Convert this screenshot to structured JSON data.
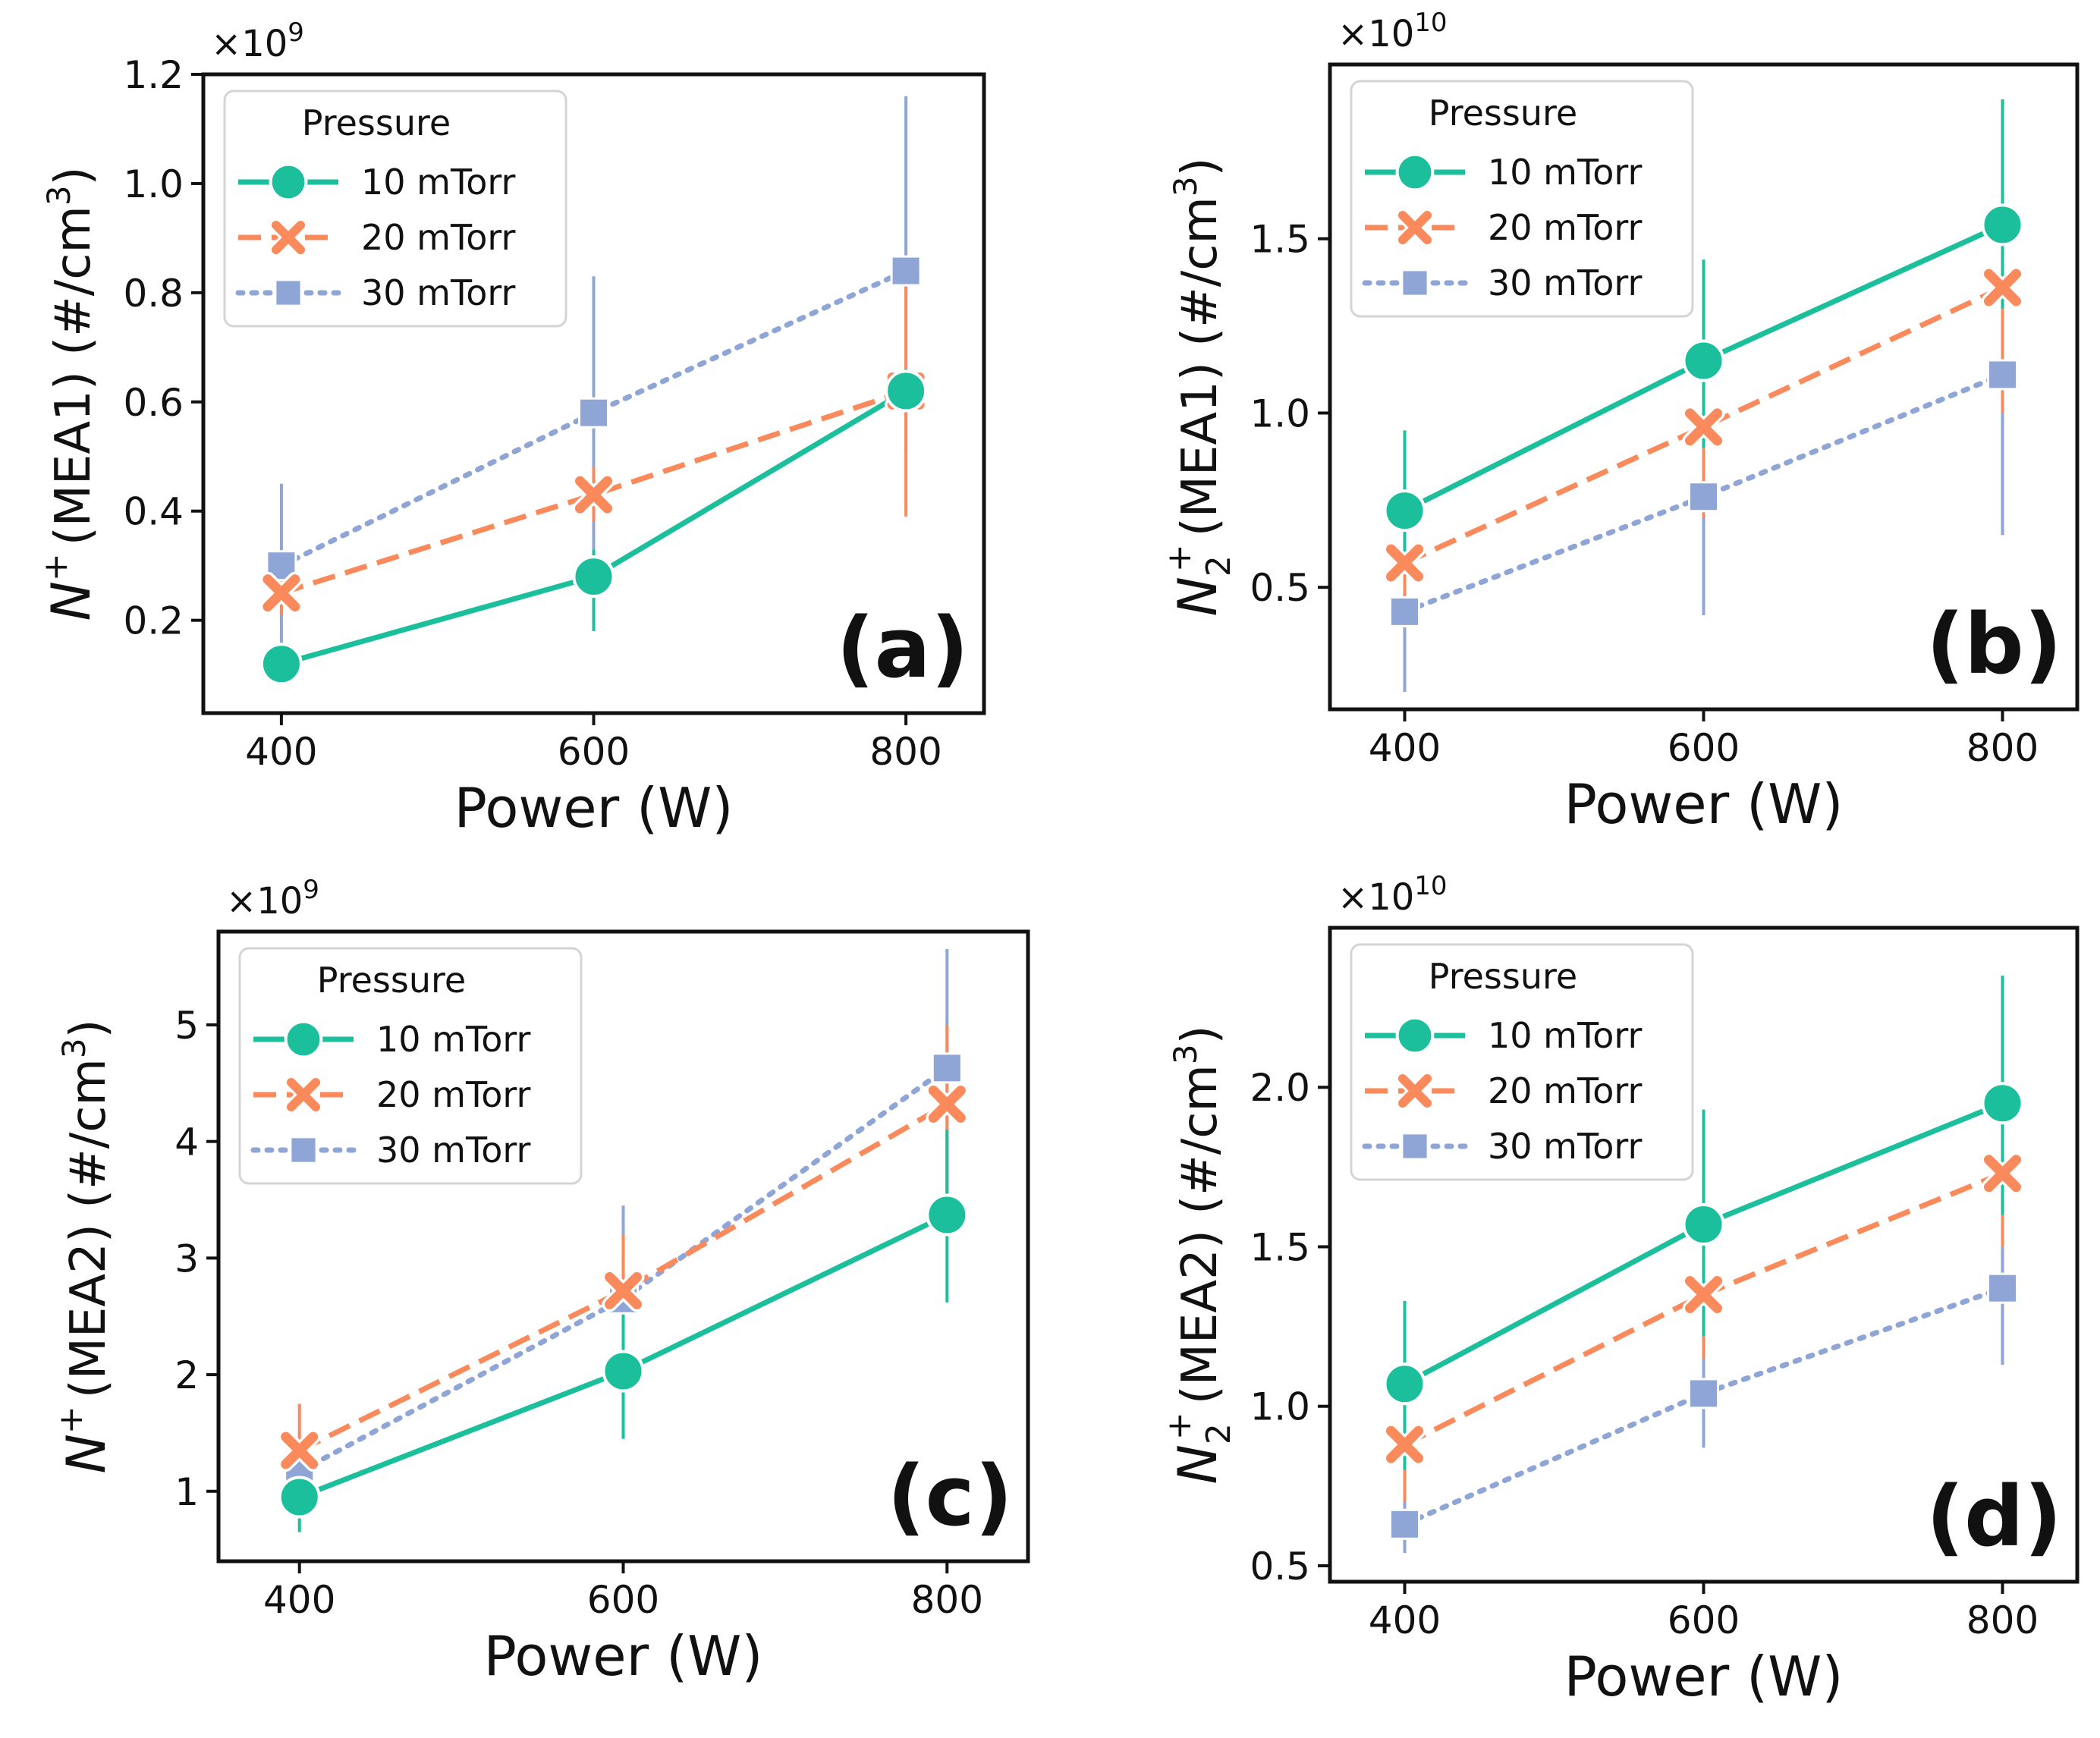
{
  "chart_data": [
    {
      "type": "line",
      "panel_label": "(a)",
      "xlabel": "Power (W)",
      "ylabel_main": "N",
      "ylabel_sup": "+",
      "ylabel_sub": "",
      "ylabel_rest": "(MEA1) (#/cm",
      "ylabel_unit_sup": "3",
      "ylabel_close": ")",
      "ylabel_full": "N+(MEA1) (#/cm3)",
      "multiplier_base": "×10",
      "multiplier_exp": "9",
      "x": [
        400,
        600,
        800
      ],
      "xlim": [
        350,
        850
      ],
      "ylim": [
        0.03,
        1.2
      ],
      "yticks": [
        0.2,
        0.4,
        0.6,
        0.8,
        1.0,
        1.2
      ],
      "ytick_labels": [
        "0.2",
        "0.4",
        "0.6",
        "0.8",
        "1.0",
        "1.2"
      ],
      "xticks": [
        400,
        600,
        800
      ],
      "xtick_labels": [
        "400",
        "600",
        "800"
      ],
      "legend_title": "Pressure",
      "legend_position": "top-left",
      "series": [
        {
          "name": "10 mTorr",
          "values": [
            0.12,
            0.28,
            0.62
          ],
          "err_low": [
            0.12,
            0.18,
            0.62
          ],
          "err_high": [
            0.12,
            0.33,
            0.66
          ]
        },
        {
          "name": "20 mTorr",
          "values": [
            0.25,
            0.43,
            0.62
          ],
          "err_low": [
            0.21,
            0.38,
            0.39
          ],
          "err_high": [
            0.3,
            0.48,
            0.85
          ]
        },
        {
          "name": "30 mTorr",
          "values": [
            0.3,
            0.58,
            0.84
          ],
          "err_low": [
            0.14,
            0.33,
            0.51
          ],
          "err_high": [
            0.45,
            0.83,
            1.16
          ]
        }
      ]
    },
    {
      "type": "line",
      "panel_label": "(b)",
      "xlabel": "Power (W)",
      "ylabel_main": "N",
      "ylabel_sup": "+",
      "ylabel_sub": "2",
      "ylabel_rest": "(MEA1) (#/cm",
      "ylabel_unit_sup": "3",
      "ylabel_close": ")",
      "ylabel_full": "N2+(MEA1) (#/cm3)",
      "multiplier_base": "×10",
      "multiplier_exp": "10",
      "x": [
        400,
        600,
        800
      ],
      "xlim": [
        350,
        850
      ],
      "ylim": [
        0.15,
        2.0
      ],
      "yticks": [
        0.5,
        1.0,
        1.5
      ],
      "ytick_labels": [
        "0.5",
        "1.0",
        "1.5"
      ],
      "xticks": [
        400,
        600,
        800
      ],
      "xtick_labels": [
        "400",
        "600",
        "800"
      ],
      "legend_title": "Pressure",
      "legend_position": "top-left",
      "series": [
        {
          "name": "10 mTorr",
          "values": [
            0.72,
            1.15,
            1.54
          ],
          "err_low": [
            0.55,
            0.9,
            1.3
          ],
          "err_high": [
            0.95,
            1.44,
            1.9
          ]
        },
        {
          "name": "20 mTorr",
          "values": [
            0.57,
            0.96,
            1.36
          ],
          "err_low": [
            0.45,
            0.7,
            1.0
          ],
          "err_high": [
            0.8,
            1.33,
            1.82
          ]
        },
        {
          "name": "30 mTorr",
          "values": [
            0.43,
            0.76,
            1.11
          ],
          "err_low": [
            0.2,
            0.42,
            0.65
          ],
          "err_high": [
            0.66,
            1.1,
            1.56
          ]
        }
      ]
    },
    {
      "type": "line",
      "panel_label": "(c)",
      "xlabel": "Power (W)",
      "ylabel_main": "N",
      "ylabel_sup": "+",
      "ylabel_sub": "",
      "ylabel_rest": "(MEA2) (#/cm",
      "ylabel_unit_sup": "3",
      "ylabel_close": ")",
      "ylabel_full": "N+(MEA2) (#/cm3)",
      "multiplier_base": "×10",
      "multiplier_exp": "9",
      "x": [
        400,
        600,
        800
      ],
      "xlim": [
        350,
        850
      ],
      "ylim": [
        0.4,
        5.8
      ],
      "yticks": [
        1,
        2,
        3,
        4,
        5
      ],
      "ytick_labels": [
        "1",
        "2",
        "3",
        "4",
        "5"
      ],
      "xticks": [
        400,
        600,
        800
      ],
      "xtick_labels": [
        "400",
        "600",
        "800"
      ],
      "legend_title": "Pressure",
      "legend_position": "top-left",
      "series": [
        {
          "name": "10 mTorr",
          "values": [
            0.95,
            2.03,
            3.37
          ],
          "err_low": [
            0.65,
            1.45,
            2.62
          ],
          "err_high": [
            1.25,
            2.6,
            4.1
          ]
        },
        {
          "name": "20 mTorr",
          "values": [
            1.35,
            2.72,
            4.32
          ],
          "err_low": [
            0.95,
            2.2,
            3.5
          ],
          "err_high": [
            1.75,
            3.2,
            5.0
          ]
        },
        {
          "name": "30 mTorr",
          "values": [
            1.17,
            2.65,
            4.63
          ],
          "err_low": [
            0.85,
            1.85,
            3.6
          ],
          "err_high": [
            1.5,
            3.45,
            5.65
          ]
        }
      ]
    },
    {
      "type": "line",
      "panel_label": "(d)",
      "xlabel": "Power (W)",
      "ylabel_main": "N",
      "ylabel_sup": "+",
      "ylabel_sub": "2",
      "ylabel_rest": "(MEA2) (#/cm",
      "ylabel_unit_sup": "3",
      "ylabel_close": ")",
      "ylabel_full": "N2+(MEA2) (#/cm3)",
      "multiplier_base": "×10",
      "multiplier_exp": "10",
      "x": [
        400,
        600,
        800
      ],
      "xlim": [
        350,
        850
      ],
      "ylim": [
        0.45,
        2.5
      ],
      "yticks": [
        0.5,
        1.0,
        1.5,
        2.0
      ],
      "ytick_labels": [
        "0.5",
        "1.0",
        "1.5",
        "2.0"
      ],
      "xticks": [
        400,
        600,
        800
      ],
      "xtick_labels": [
        "400",
        "600",
        "800"
      ],
      "legend_title": "Pressure",
      "legend_position": "top-left",
      "series": [
        {
          "name": "10 mTorr",
          "values": [
            1.07,
            1.57,
            1.95
          ],
          "err_low": [
            0.8,
            1.22,
            1.6
          ],
          "err_high": [
            1.33,
            1.93,
            2.35
          ]
        },
        {
          "name": "20 mTorr",
          "values": [
            0.88,
            1.35,
            1.73
          ],
          "err_low": [
            0.7,
            1.15,
            1.5
          ],
          "err_high": [
            1.05,
            1.57,
            2.1
          ]
        },
        {
          "name": "30 mTorr",
          "values": [
            0.63,
            1.04,
            1.37
          ],
          "err_low": [
            0.54,
            0.87,
            1.13
          ],
          "err_high": [
            0.72,
            1.22,
            1.62
          ]
        }
      ]
    }
  ],
  "series_styles": [
    {
      "name": "10 mTorr",
      "color": "#1bbf9c",
      "marker": "circle",
      "dash": "solid"
    },
    {
      "name": "20 mTorr",
      "color": "#fa8a5b",
      "marker": "x",
      "dash": "dashed"
    },
    {
      "name": "30 mTorr",
      "color": "#8ea5d6",
      "marker": "square",
      "dash": "dotted"
    }
  ]
}
